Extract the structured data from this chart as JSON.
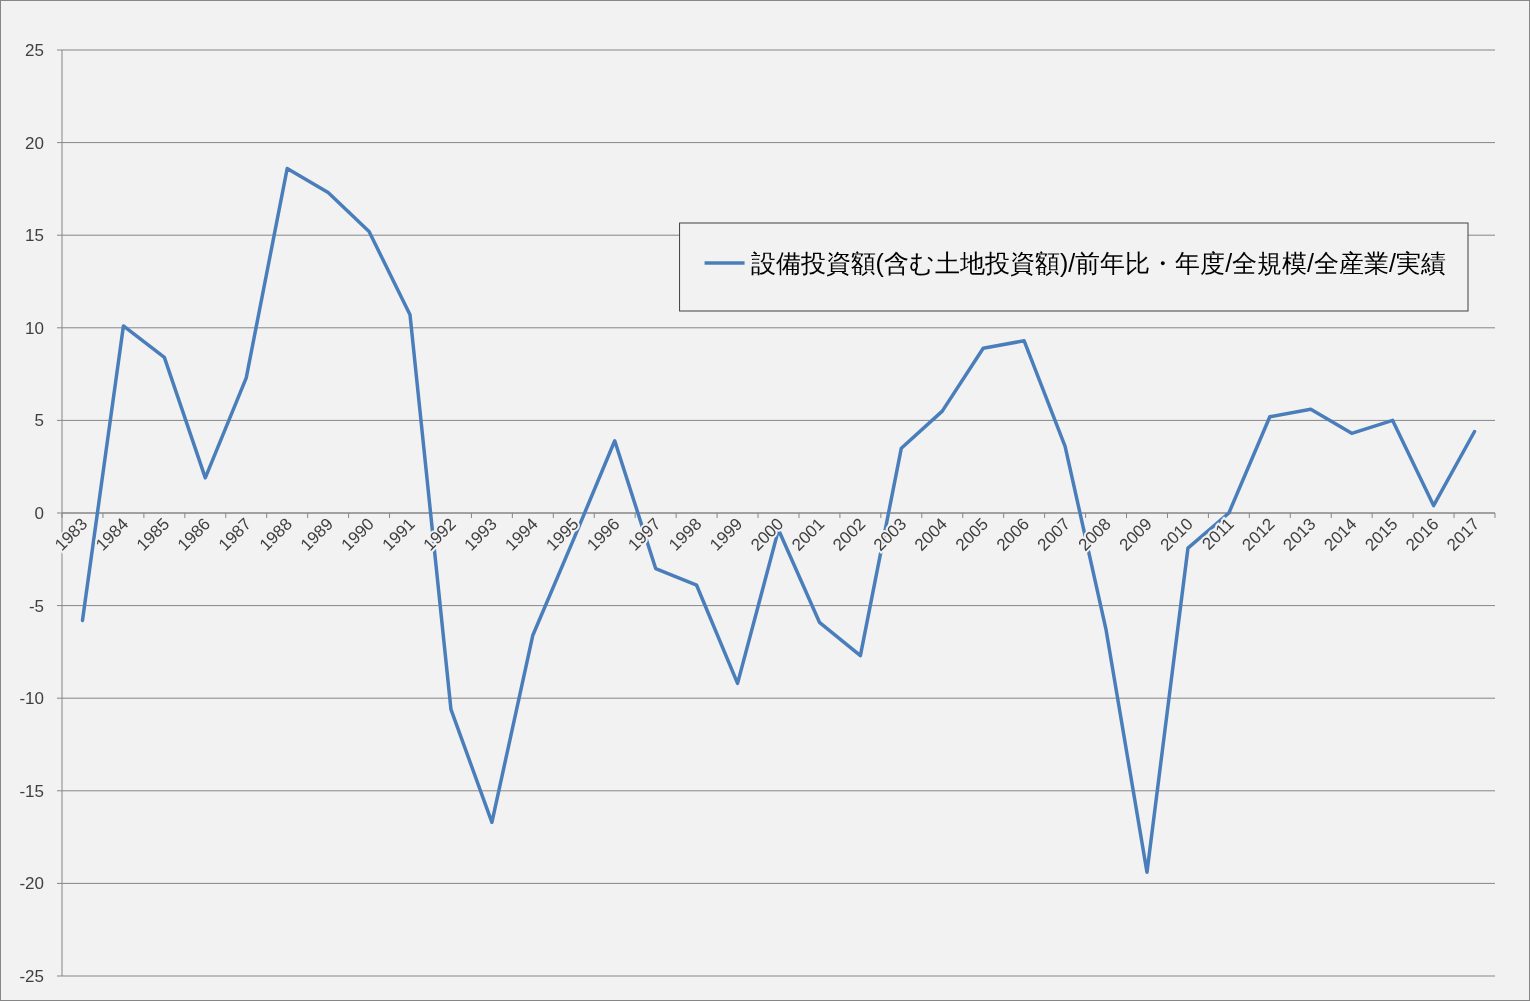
{
  "chart_data": {
    "type": "line",
    "categories": [
      "1983",
      "1984",
      "1985",
      "1986",
      "1987",
      "1988",
      "1989",
      "1990",
      "1991",
      "1992",
      "1993",
      "1994",
      "1995",
      "1996",
      "1997",
      "1998",
      "1999",
      "2000",
      "2001",
      "2002",
      "2003",
      "2004",
      "2005",
      "2006",
      "2007",
      "2008",
      "2009",
      "2010",
      "2011",
      "2012",
      "2013",
      "2014",
      "2015",
      "2016",
      "2017"
    ],
    "series": [
      {
        "name": "設備投資額(含む土地投資額)/前年比・年度/全規模/全産業/実績",
        "color": "#4a7ebb",
        "values": [
          -5.8,
          10.1,
          8.4,
          1.9,
          7.3,
          18.6,
          17.3,
          15.2,
          10.7,
          -10.6,
          -16.7,
          -6.6,
          -1.4,
          3.9,
          -3.0,
          -3.9,
          -9.2,
          -0.9,
          -5.9,
          -7.7,
          3.5,
          5.5,
          8.9,
          9.3,
          3.6,
          -6.3,
          -19.4,
          -1.9,
          0,
          5.2,
          5.6,
          4.3,
          5.0,
          0.4,
          4.4
        ]
      }
    ],
    "ylim": [
      -25,
      25
    ],
    "yticks": [
      -25,
      -20,
      -15,
      -10,
      -5,
      0,
      5,
      10,
      15,
      20,
      25
    ],
    "grid": "y",
    "legend": "top right"
  }
}
